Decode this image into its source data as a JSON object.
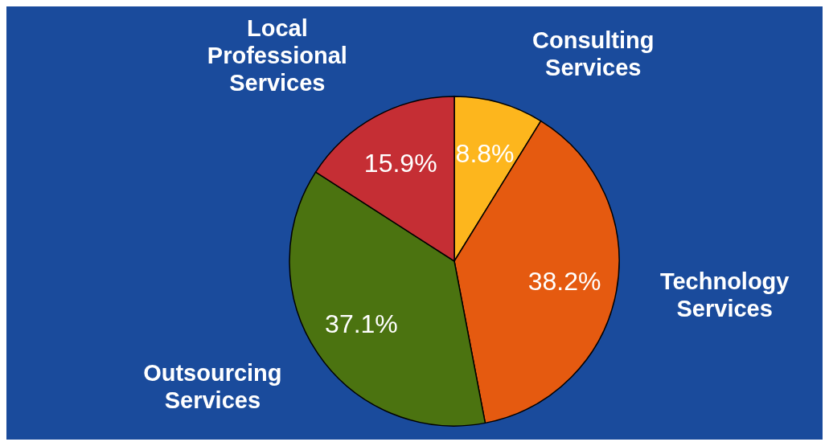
{
  "chart_data": {
    "type": "pie",
    "categories": [
      "Consulting Services",
      "Technology Services",
      "Outsourcing Services",
      "Local Professional Services"
    ],
    "values": [
      8.8,
      38.2,
      37.1,
      15.9
    ],
    "colors": [
      "#fdb61d",
      "#e55a10",
      "#4b7310",
      "#c52e34"
    ],
    "value_labels": [
      "8.8%",
      "38.2%",
      "37.1%",
      "15.9%"
    ]
  }
}
